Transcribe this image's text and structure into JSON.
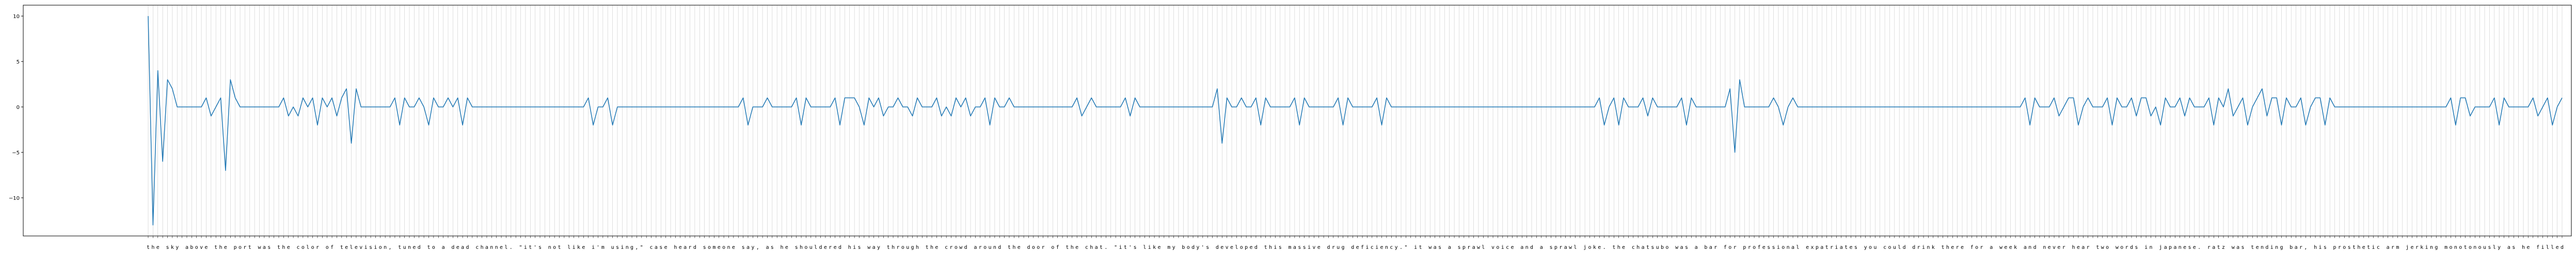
{
  "chart_data": {
    "type": "line",
    "title": "",
    "xlabel": "",
    "ylabel": "",
    "ylim": [
      -14.2,
      11.2
    ],
    "y_ticks": [
      10,
      5,
      0,
      -5,
      -10
    ],
    "y_tick_labels": [
      "10",
      "5",
      "0",
      "−5",
      "−10"
    ],
    "grid": "vertical lines at every character tick",
    "text": "the sky above the port was the color of television, tuned to a dead channel. \"it's not like i'm using,\" case heard someone say, as he shouldered his way through the crowd around the door of the chat. \"it's like my body's developed this massive drug deficiency.\" it was a sprawl voice and a sprawl joke. the chatsubo was a bar for professional expatriates you could drink there for a week and never hear two words in japanese. ratz was tending bar, his prosthetic arm jerking monotonously as he filled",
    "values": [
      10,
      -13,
      4,
      -6,
      3,
      2,
      0,
      0,
      0,
      0,
      0,
      0,
      1,
      -1,
      0,
      1,
      -7,
      3,
      1,
      0,
      0,
      0,
      0,
      0,
      0,
      0,
      0,
      0,
      1,
      -1,
      0,
      -1,
      1,
      0,
      1,
      -2,
      1,
      0,
      1,
      -1,
      1,
      2,
      -4,
      2,
      0,
      0,
      0,
      0,
      0,
      0,
      0,
      1,
      -2,
      1,
      0,
      0,
      1,
      0,
      -2,
      1,
      0,
      0,
      1,
      0,
      1,
      -2,
      1,
      0,
      0,
      0,
      0,
      0,
      0,
      0,
      0,
      0,
      0,
      0,
      0,
      0,
      0,
      0,
      0,
      0,
      0,
      0,
      0,
      0,
      0,
      0,
      0,
      1,
      -2,
      0,
      0,
      1,
      -2,
      0,
      0,
      0,
      0,
      0,
      0,
      0,
      0,
      0,
      0,
      0,
      0,
      0,
      0,
      0,
      0,
      0,
      0,
      0,
      0,
      0,
      0,
      0,
      0,
      0,
      0,
      1,
      -2,
      0,
      0,
      0,
      1,
      0,
      0,
      0,
      0,
      0,
      1,
      -2,
      1,
      0,
      0,
      0,
      0,
      0,
      1,
      -2,
      1,
      1,
      1,
      0,
      -2,
      1,
      0,
      1,
      -1,
      0,
      0,
      1,
      0,
      0,
      -1,
      1,
      0,
      0,
      0,
      1,
      -1,
      0,
      -1,
      1,
      0,
      1,
      -1,
      0,
      0,
      1,
      -2,
      1,
      0,
      0,
      1,
      0,
      0,
      0,
      0,
      0,
      0,
      0,
      0,
      0,
      0,
      0,
      0,
      0,
      1,
      -1,
      0,
      1,
      0,
      0,
      0,
      0,
      0,
      0,
      1,
      -1,
      1,
      0,
      0,
      0,
      0,
      0,
      0,
      0,
      0,
      0,
      0,
      0,
      0,
      0,
      0,
      0,
      0,
      2,
      -4,
      1,
      0,
      0,
      1,
      0,
      0,
      1,
      -2,
      1,
      0,
      0,
      0,
      0,
      0,
      1,
      -2,
      1,
      0,
      0,
      0,
      0,
      0,
      0,
      1,
      -2,
      1,
      0,
      0,
      0,
      0,
      0,
      1,
      -2,
      1,
      0,
      0,
      0,
      0,
      0,
      0,
      0,
      0,
      0,
      0,
      0,
      0,
      0,
      0,
      0,
      0,
      0,
      0,
      0,
      0,
      0,
      0,
      0,
      0,
      0,
      0,
      0,
      0,
      0,
      0,
      0,
      0,
      0,
      0,
      0,
      0,
      0,
      0,
      0,
      0,
      0,
      0,
      0,
      1,
      -2,
      0,
      1,
      -2,
      1,
      0,
      0,
      0,
      1,
      -1,
      1,
      0,
      0,
      0,
      0,
      0,
      1,
      -2,
      1,
      0,
      0,
      0,
      0,
      0,
      0,
      0,
      2,
      -5,
      3,
      0,
      0,
      0,
      0,
      0,
      0,
      1,
      0,
      -2,
      0,
      1,
      0,
      0,
      0,
      0,
      0,
      0,
      0,
      0,
      0,
      0,
      0,
      0,
      0,
      0,
      0,
      0,
      0,
      0,
      0,
      0,
      0,
      0,
      0,
      0,
      0,
      0,
      0,
      0,
      0,
      0,
      0,
      0,
      0,
      0,
      0,
      0,
      0,
      0,
      0,
      0,
      0,
      0,
      0,
      0,
      0,
      0,
      0,
      1,
      -2,
      1,
      0,
      0,
      0,
      1,
      -1,
      0,
      1,
      1,
      -2,
      0,
      1,
      0,
      0,
      0,
      1,
      -2,
      1,
      0,
      0,
      1,
      -1,
      1,
      1,
      -1,
      0,
      -2,
      1,
      0,
      0,
      1,
      -1,
      1,
      0,
      0,
      0,
      1,
      -2,
      1,
      0,
      2,
      -1,
      0,
      1,
      -2,
      0,
      1,
      2,
      -1,
      1,
      1,
      -2,
      1,
      0,
      0,
      1,
      -2,
      0,
      1,
      1,
      -2,
      1,
      0,
      0,
      0,
      0,
      0,
      0,
      0,
      0,
      0,
      0,
      0,
      0,
      0,
      0,
      0,
      0,
      0,
      0,
      0,
      0,
      0,
      0,
      0,
      0,
      1,
      -2,
      1,
      1,
      -1,
      0,
      0,
      0,
      0,
      1,
      -2,
      1,
      0,
      0,
      0,
      0,
      0,
      1,
      -1,
      0,
      1,
      -2,
      0,
      1,
      0,
      0,
      0,
      0,
      0,
      0,
      0,
      0,
      0,
      0,
      0,
      0,
      0,
      0,
      0,
      0,
      0,
      0,
      0,
      0,
      1,
      -2,
      0,
      1,
      0,
      0,
      1,
      -1,
      0,
      1,
      0,
      -1,
      0,
      1,
      -2,
      0,
      0,
      1,
      -2,
      1,
      0,
      1,
      -1,
      1,
      0,
      1,
      -3,
      2,
      0,
      0,
      0
    ]
  }
}
